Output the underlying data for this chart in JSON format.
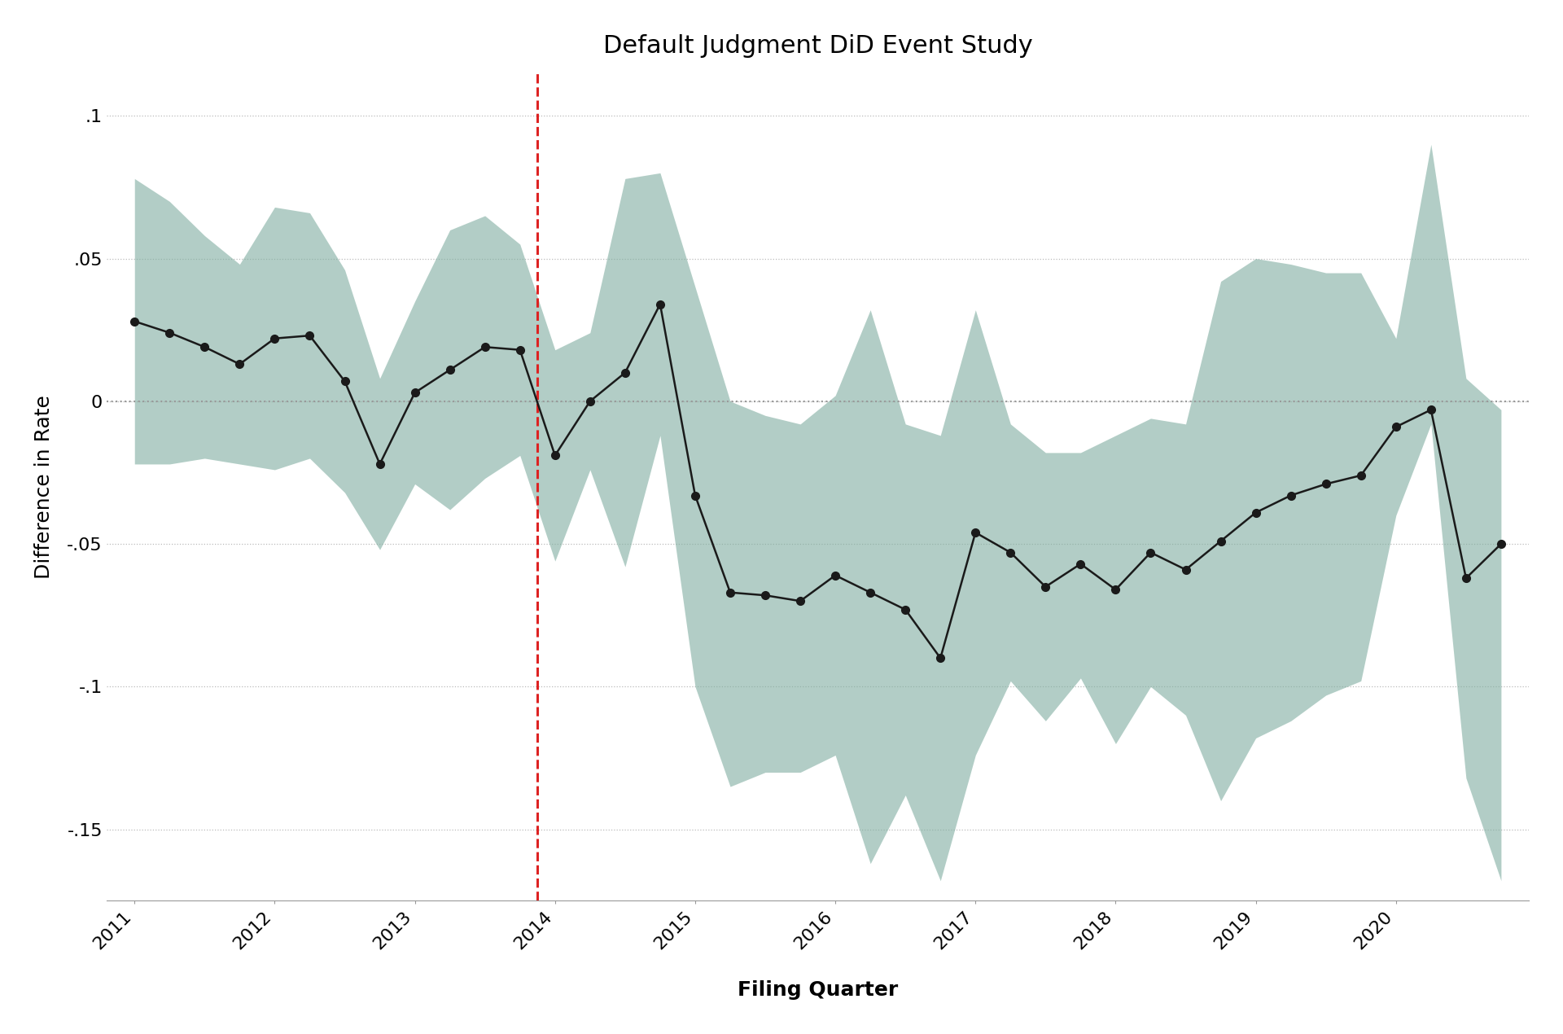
{
  "title": "Default Judgment DiD Event Study",
  "xlabel": "Filing Quarter",
  "ylabel": "Difference in Rate",
  "background_color": "#ffffff",
  "shade_color": "#7fada0",
  "line_color": "#1a1a1a",
  "vline_x": 11.5,
  "vline_color": "#dd2222",
  "hline_y": 0,
  "hline_color": "#999999",
  "ylim": [
    -0.175,
    0.115
  ],
  "yticks": [
    0.1,
    0.05,
    0,
    -0.05,
    -0.1,
    -0.15
  ],
  "ytick_labels": [
    ".1",
    ".05",
    "0",
    "-.05",
    "-.1",
    "-.15"
  ],
  "x_indices": [
    0,
    1,
    2,
    3,
    4,
    5,
    6,
    7,
    8,
    9,
    10,
    11,
    12,
    13,
    14,
    15,
    16,
    17,
    18,
    19,
    20,
    21,
    22,
    23,
    24,
    25,
    26,
    27,
    28,
    29,
    30,
    31,
    32,
    33,
    34,
    35,
    36,
    37,
    38,
    39
  ],
  "point_estimate": [
    0.028,
    0.024,
    0.019,
    0.013,
    0.022,
    0.023,
    0.007,
    -0.022,
    0.003,
    0.011,
    0.019,
    0.018,
    -0.019,
    0.0,
    0.01,
    0.034,
    -0.033,
    -0.067,
    -0.068,
    -0.07,
    -0.061,
    -0.067,
    -0.073,
    -0.09,
    -0.046,
    -0.053,
    -0.065,
    -0.057,
    -0.066,
    -0.053,
    -0.059,
    -0.049,
    -0.039,
    -0.033,
    -0.029,
    -0.026,
    -0.009,
    -0.003,
    -0.062,
    -0.05
  ],
  "ci_upper": [
    0.078,
    0.07,
    0.058,
    0.048,
    0.068,
    0.066,
    0.046,
    0.008,
    0.035,
    0.06,
    0.065,
    0.055,
    0.018,
    0.024,
    0.078,
    0.08,
    0.04,
    0.0,
    -0.005,
    -0.008,
    0.002,
    0.032,
    -0.008,
    -0.012,
    0.032,
    -0.008,
    -0.018,
    -0.018,
    -0.012,
    -0.006,
    -0.008,
    0.042,
    0.05,
    0.048,
    0.045,
    0.045,
    0.022,
    0.09,
    0.008,
    -0.003
  ],
  "ci_lower": [
    -0.022,
    -0.022,
    -0.02,
    -0.022,
    -0.024,
    -0.02,
    -0.032,
    -0.052,
    -0.029,
    -0.038,
    -0.027,
    -0.019,
    -0.056,
    -0.024,
    -0.058,
    -0.012,
    -0.1,
    -0.135,
    -0.13,
    -0.13,
    -0.124,
    -0.162,
    -0.138,
    -0.168,
    -0.124,
    -0.098,
    -0.112,
    -0.097,
    -0.12,
    -0.1,
    -0.11,
    -0.14,
    -0.118,
    -0.112,
    -0.103,
    -0.098,
    -0.04,
    -0.008,
    -0.132,
    -0.168
  ],
  "xtick_positions": [
    0,
    4,
    8,
    12,
    16,
    20,
    24,
    28,
    32,
    36
  ],
  "xtick_labels": [
    "2011",
    "2012",
    "2013",
    "2014",
    "2015",
    "2016",
    "2017",
    "2018",
    "2019",
    "2020"
  ],
  "title_fontsize": 22,
  "label_fontsize": 18,
  "tick_fontsize": 16
}
